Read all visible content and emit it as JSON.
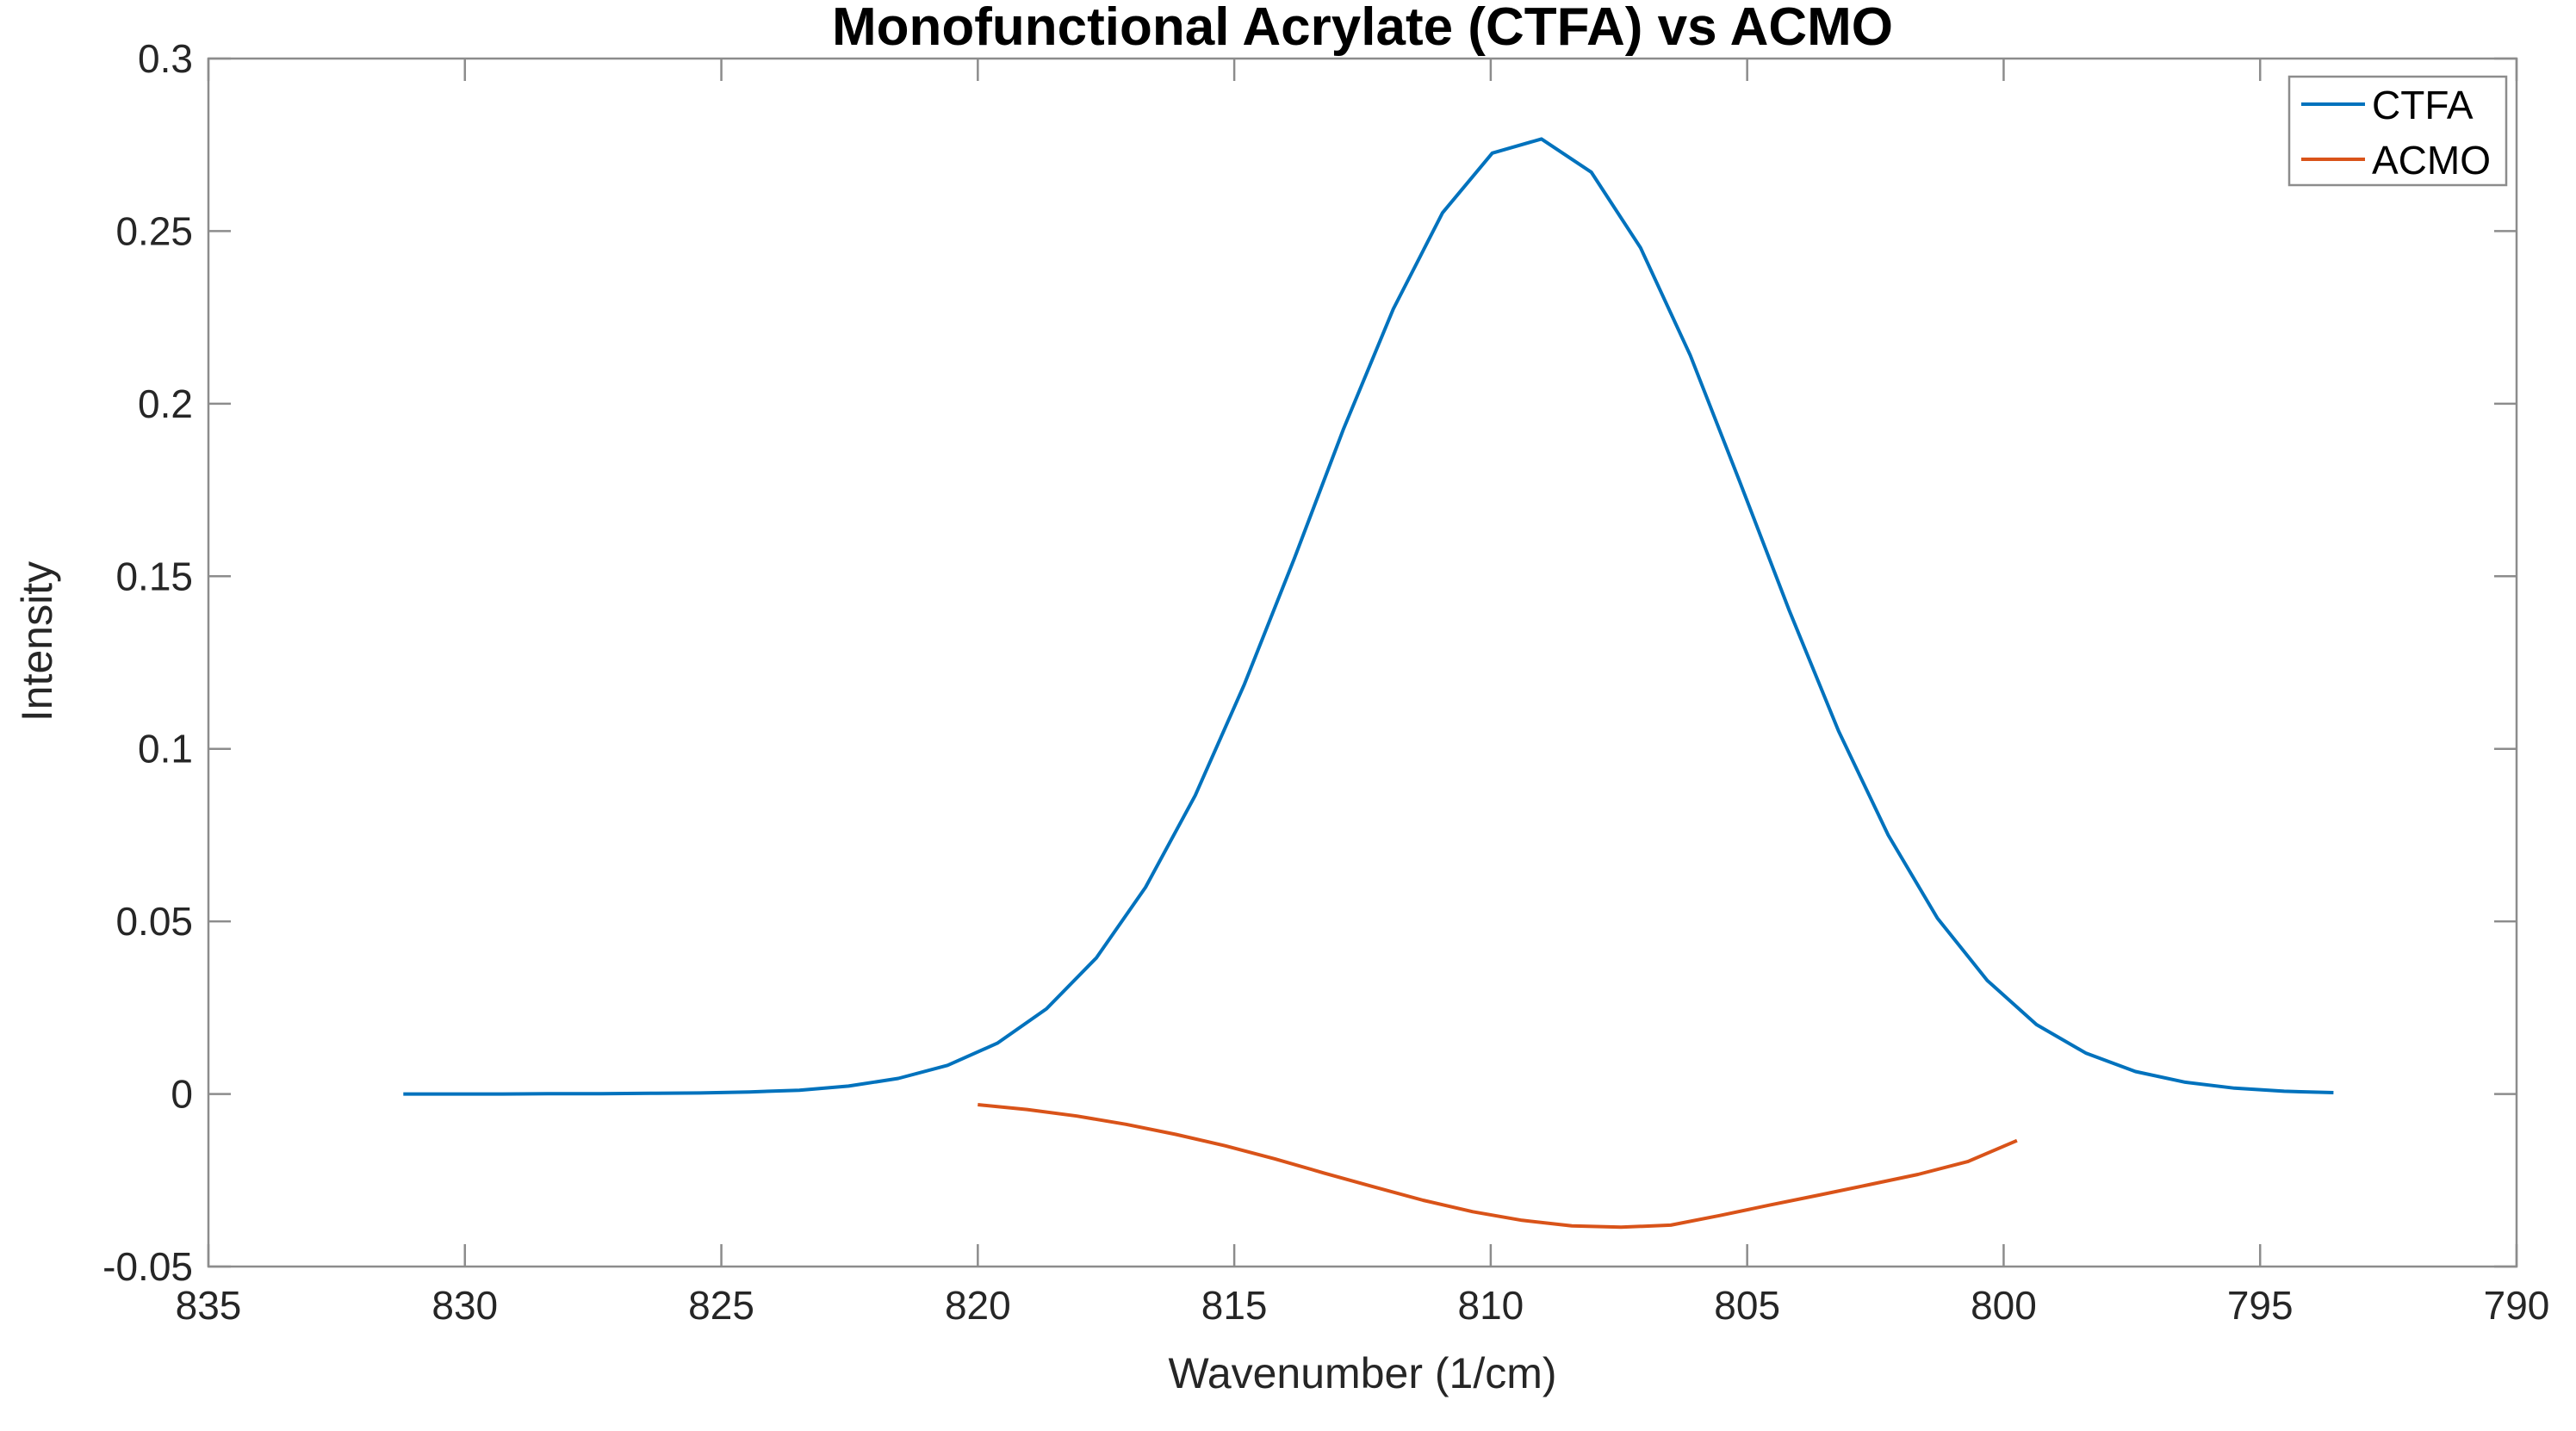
{
  "figure": {
    "background_color": "#ffffff",
    "axes_color": "#8c8c8c",
    "text_color": "#262626"
  },
  "chart_data": {
    "type": "line",
    "title": "Monofunctional Acrylate (CTFA) vs ACMO",
    "xlabel": "Wavenumber (1/cm)",
    "ylabel": "Intensity",
    "xlim": [
      835,
      790
    ],
    "ylim": [
      -0.05,
      0.3
    ],
    "x_axis_reversed": true,
    "grid": false,
    "x_ticks": [
      835,
      830,
      825,
      820,
      815,
      810,
      805,
      800,
      795,
      790
    ],
    "x_tick_labels": [
      "835",
      "830",
      "825",
      "820",
      "815",
      "810",
      "805",
      "800",
      "795",
      "790"
    ],
    "y_ticks": [
      -0.05,
      0,
      0.05,
      0.1,
      0.15,
      0.2,
      0.25,
      0.3
    ],
    "y_tick_labels": [
      "-0.05",
      "0",
      "0.05",
      "0.1",
      "0.15",
      "0.2",
      "0.25",
      "0.3"
    ],
    "legend": {
      "position": "top-right",
      "entries": [
        "CTFA",
        "ACMO"
      ]
    },
    "series": [
      {
        "name": "CTFA",
        "color": "#0072BD",
        "x": [
          831.2,
          830.24,
          829.27,
          828.31,
          827.34,
          826.38,
          825.41,
          824.45,
          823.48,
          822.52,
          821.55,
          820.59,
          819.62,
          818.66,
          817.69,
          816.73,
          815.76,
          814.8,
          813.83,
          812.87,
          811.9,
          810.94,
          809.97,
          809.01,
          808.04,
          807.08,
          806.11,
          805.15,
          804.18,
          803.22,
          802.25,
          801.29,
          800.32,
          799.36,
          798.39,
          797.43,
          796.46,
          795.5,
          794.53,
          793.57
        ],
        "y": [
          0.0,
          0.0,
          0.0,
          0.0001,
          0.0001,
          0.0002,
          0.0003,
          0.0006,
          0.0011,
          0.0023,
          0.0045,
          0.0083,
          0.0147,
          0.0247,
          0.0394,
          0.0599,
          0.0865,
          0.1188,
          0.1551,
          0.1927,
          0.2274,
          0.2553,
          0.2726,
          0.2767,
          0.2671,
          0.2452,
          0.214,
          0.1776,
          0.1401,
          0.1052,
          0.075,
          0.0509,
          0.0329,
          0.0201,
          0.0118,
          0.0065,
          0.0034,
          0.0017,
          0.0008,
          0.0004
        ]
      },
      {
        "name": "ACMO",
        "color": "#D95319",
        "x": [
          820.0,
          819.04,
          818.07,
          817.11,
          816.14,
          815.18,
          814.21,
          813.25,
          812.28,
          811.32,
          810.35,
          809.39,
          808.42,
          807.46,
          806.49,
          805.53,
          804.56,
          803.6,
          802.63,
          801.67,
          800.7,
          799.74
        ],
        "y": [
          -0.0031,
          -0.0045,
          -0.0064,
          -0.0088,
          -0.0117,
          -0.015,
          -0.0188,
          -0.0229,
          -0.0269,
          -0.0308,
          -0.0341,
          -0.0366,
          -0.0382,
          -0.0386,
          -0.038,
          -0.0352,
          -0.0322,
          -0.0293,
          -0.0263,
          -0.0233,
          -0.0196,
          -0.0135
        ]
      }
    ]
  }
}
